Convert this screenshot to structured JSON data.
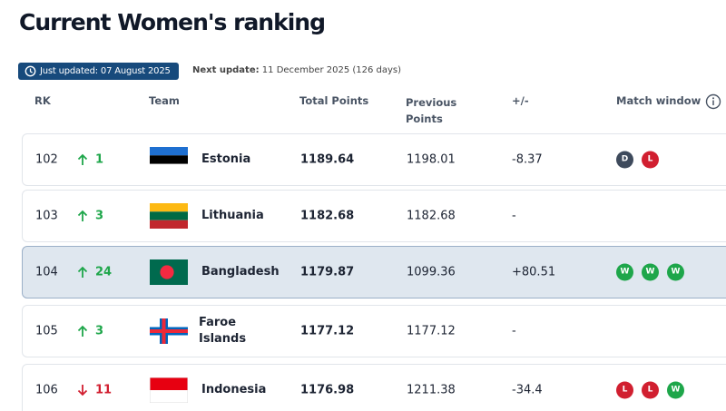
{
  "header": {
    "title": "Current Women's ranking",
    "updated": "Just updated: 07 August 2025",
    "next_label": "Next update:",
    "next_value": "11 December 2025 (126 days)"
  },
  "table": {
    "columns": [
      "RK",
      "Team",
      "Total Points",
      "Previous Points",
      "+/-",
      "Match window"
    ],
    "rows": [
      {
        "rank": "102",
        "direction": "up",
        "change": "1",
        "team": "Estonia",
        "total": "1189.64",
        "previous": "1198.01",
        "diff": "-8.37",
        "matches": [
          {
            "label": "D",
            "color": "#3e4a5c"
          },
          {
            "label": "L",
            "color": "#d11f30"
          }
        ]
      },
      {
        "rank": "103",
        "direction": "up",
        "change": "3",
        "team": "Lithuania",
        "total": "1182.68",
        "previous": "1182.68",
        "diff": "-",
        "matches": []
      },
      {
        "rank": "104",
        "direction": "up",
        "change": "24",
        "team": "Bangladesh",
        "total": "1179.87",
        "previous": "1099.36",
        "diff": "+80.51",
        "matches": [
          {
            "label": "W",
            "color": "#1ea64a"
          },
          {
            "label": "W",
            "color": "#1ea64a"
          },
          {
            "label": "W",
            "color": "#1ea64a"
          }
        ]
      },
      {
        "rank": "105",
        "direction": "up",
        "change": "3",
        "team": "Faroe Islands",
        "total": "1177.12",
        "previous": "1177.12",
        "diff": "-",
        "matches": []
      },
      {
        "rank": "106",
        "direction": "down",
        "change": "11",
        "team": "Indonesia",
        "total": "1176.98",
        "previous": "1211.38",
        "diff": "-34.4",
        "matches": [
          {
            "label": "L",
            "color": "#d11f30"
          },
          {
            "label": "L",
            "color": "#d11f30"
          },
          {
            "label": "W",
            "color": "#1ea64a"
          }
        ]
      }
    ]
  }
}
